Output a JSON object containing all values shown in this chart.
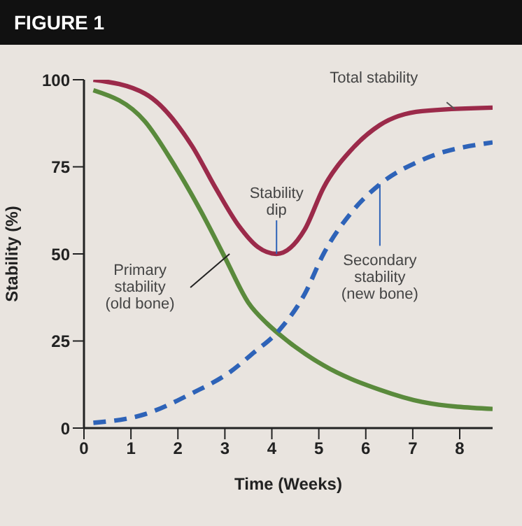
{
  "chart_data": {
    "type": "line",
    "title": "FIGURE 1",
    "xlabel": "Time (Weeks)",
    "ylabel": "Stability (%)",
    "xlim": [
      0,
      8.7
    ],
    "xticks": [
      0,
      1,
      2,
      3,
      4,
      5,
      6,
      7,
      8
    ],
    "ylim": [
      0,
      100
    ],
    "yticks": [
      0,
      25,
      50,
      75,
      100
    ],
    "grid": false,
    "legend": false,
    "marker": "none",
    "series": [
      {
        "color": "#9b2a4a",
        "line_style": "solid",
        "x": [
          0.2,
          1.3,
          2.3,
          2.8,
          3.3,
          3.7,
          4.1,
          4.7,
          5.1,
          5.7,
          6.3,
          7.2,
          8.7
        ],
        "values": [
          100,
          96,
          81,
          69,
          58,
          52,
          50,
          57,
          69,
          80,
          87,
          91,
          92
        ]
      },
      {
        "color": "#5a8a3c",
        "line_style": "solid",
        "x": [
          0.2,
          1.3,
          1.9,
          2.5,
          3.0,
          3.5,
          3.9,
          4.15,
          5.1,
          6.3,
          7.2,
          8.7
        ],
        "values": [
          97,
          88,
          76,
          62,
          49,
          36,
          30,
          27,
          18,
          11,
          7.5,
          5.5
        ]
      },
      {
        "color": "#2e63b8",
        "line_style": "dashed",
        "x": [
          0.2,
          1.3,
          2.3,
          3.1,
          3.6,
          4.15,
          4.7,
          5.1,
          5.7,
          6.3,
          7.2,
          8.7
        ],
        "values": [
          1.5,
          4,
          10,
          16,
          21.5,
          28,
          38.5,
          50,
          62,
          70,
          77,
          82
        ]
      }
    ],
    "annotations": [
      {
        "text": "Total stability",
        "x": 7.9,
        "y": 91.5
      },
      {
        "text": "Stability\ndip",
        "x": 4.1,
        "y": 50
      },
      {
        "text": "Primary\nstability\n(old bone)",
        "x": 3.1,
        "y": 50
      },
      {
        "text": "Secondary\nstability\n(new bone)",
        "x": 6.3,
        "y": 70
      }
    ]
  }
}
